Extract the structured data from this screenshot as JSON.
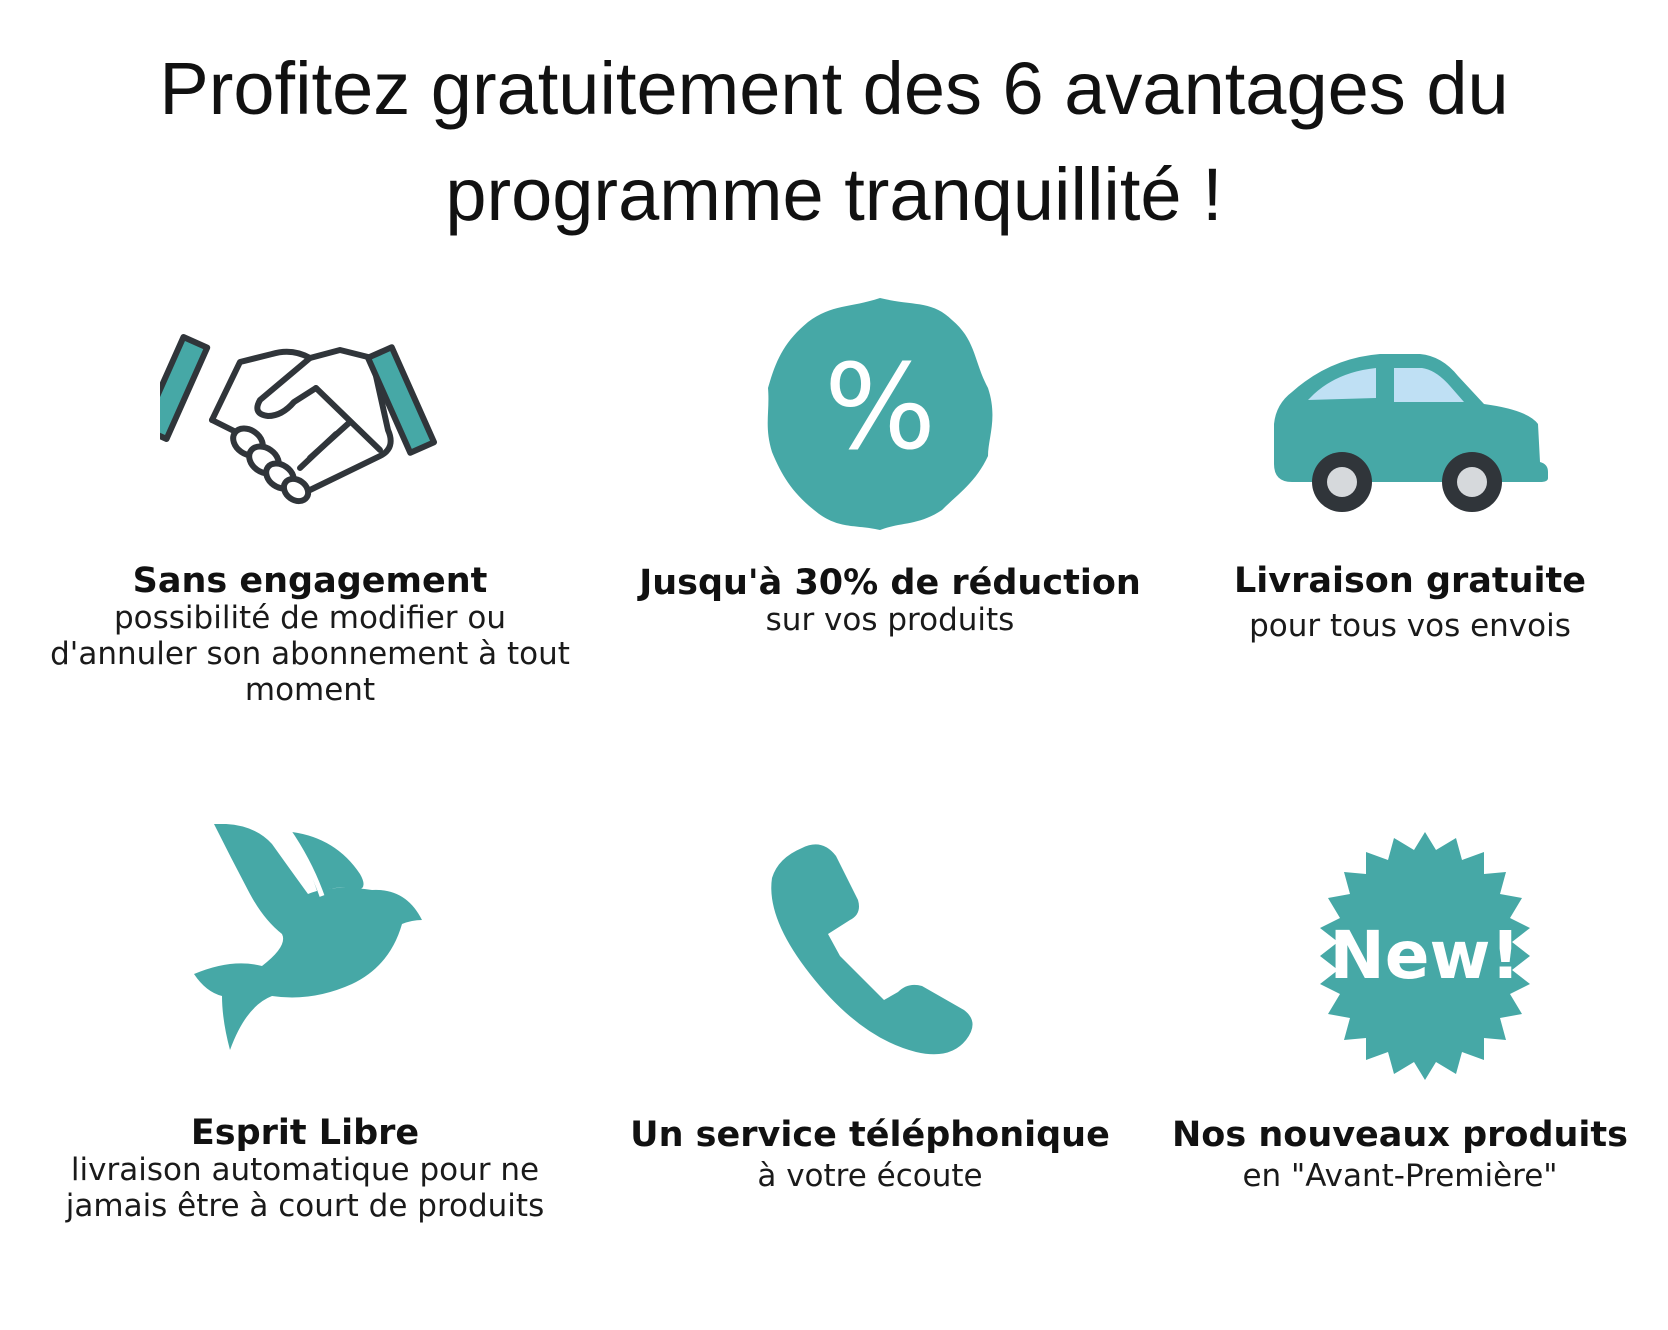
{
  "title": {
    "line1": "Profitez gratuitement des 6 avantages du",
    "line2": "programme tranquillité !"
  },
  "colors": {
    "accent": "#46a8a6",
    "outline": "#30353a",
    "window": "#bfe0f4",
    "wheel_hub": "#d6d9dc"
  },
  "benefits": [
    {
      "icon": "handshake-icon",
      "title": "Sans engagement",
      "description": "possibilité de modifier ou d'annuler son abonnement à tout moment"
    },
    {
      "icon": "percent-badge-icon",
      "icon_text": "%",
      "title": "Jusqu'à 30% de réduction",
      "description": "sur vos produits"
    },
    {
      "icon": "car-icon",
      "title": "Livraison gratuite",
      "description": "pour tous vos envois"
    },
    {
      "icon": "bird-icon",
      "title": "Esprit Libre",
      "description": "livraison automatique pour ne jamais être à court de produits"
    },
    {
      "icon": "phone-icon",
      "title": "Un service téléphonique",
      "description": "à votre écoute"
    },
    {
      "icon": "new-badge-icon",
      "icon_text": "New!",
      "title": "Nos nouveaux produits",
      "description": "en \"Avant-Première\""
    }
  ]
}
